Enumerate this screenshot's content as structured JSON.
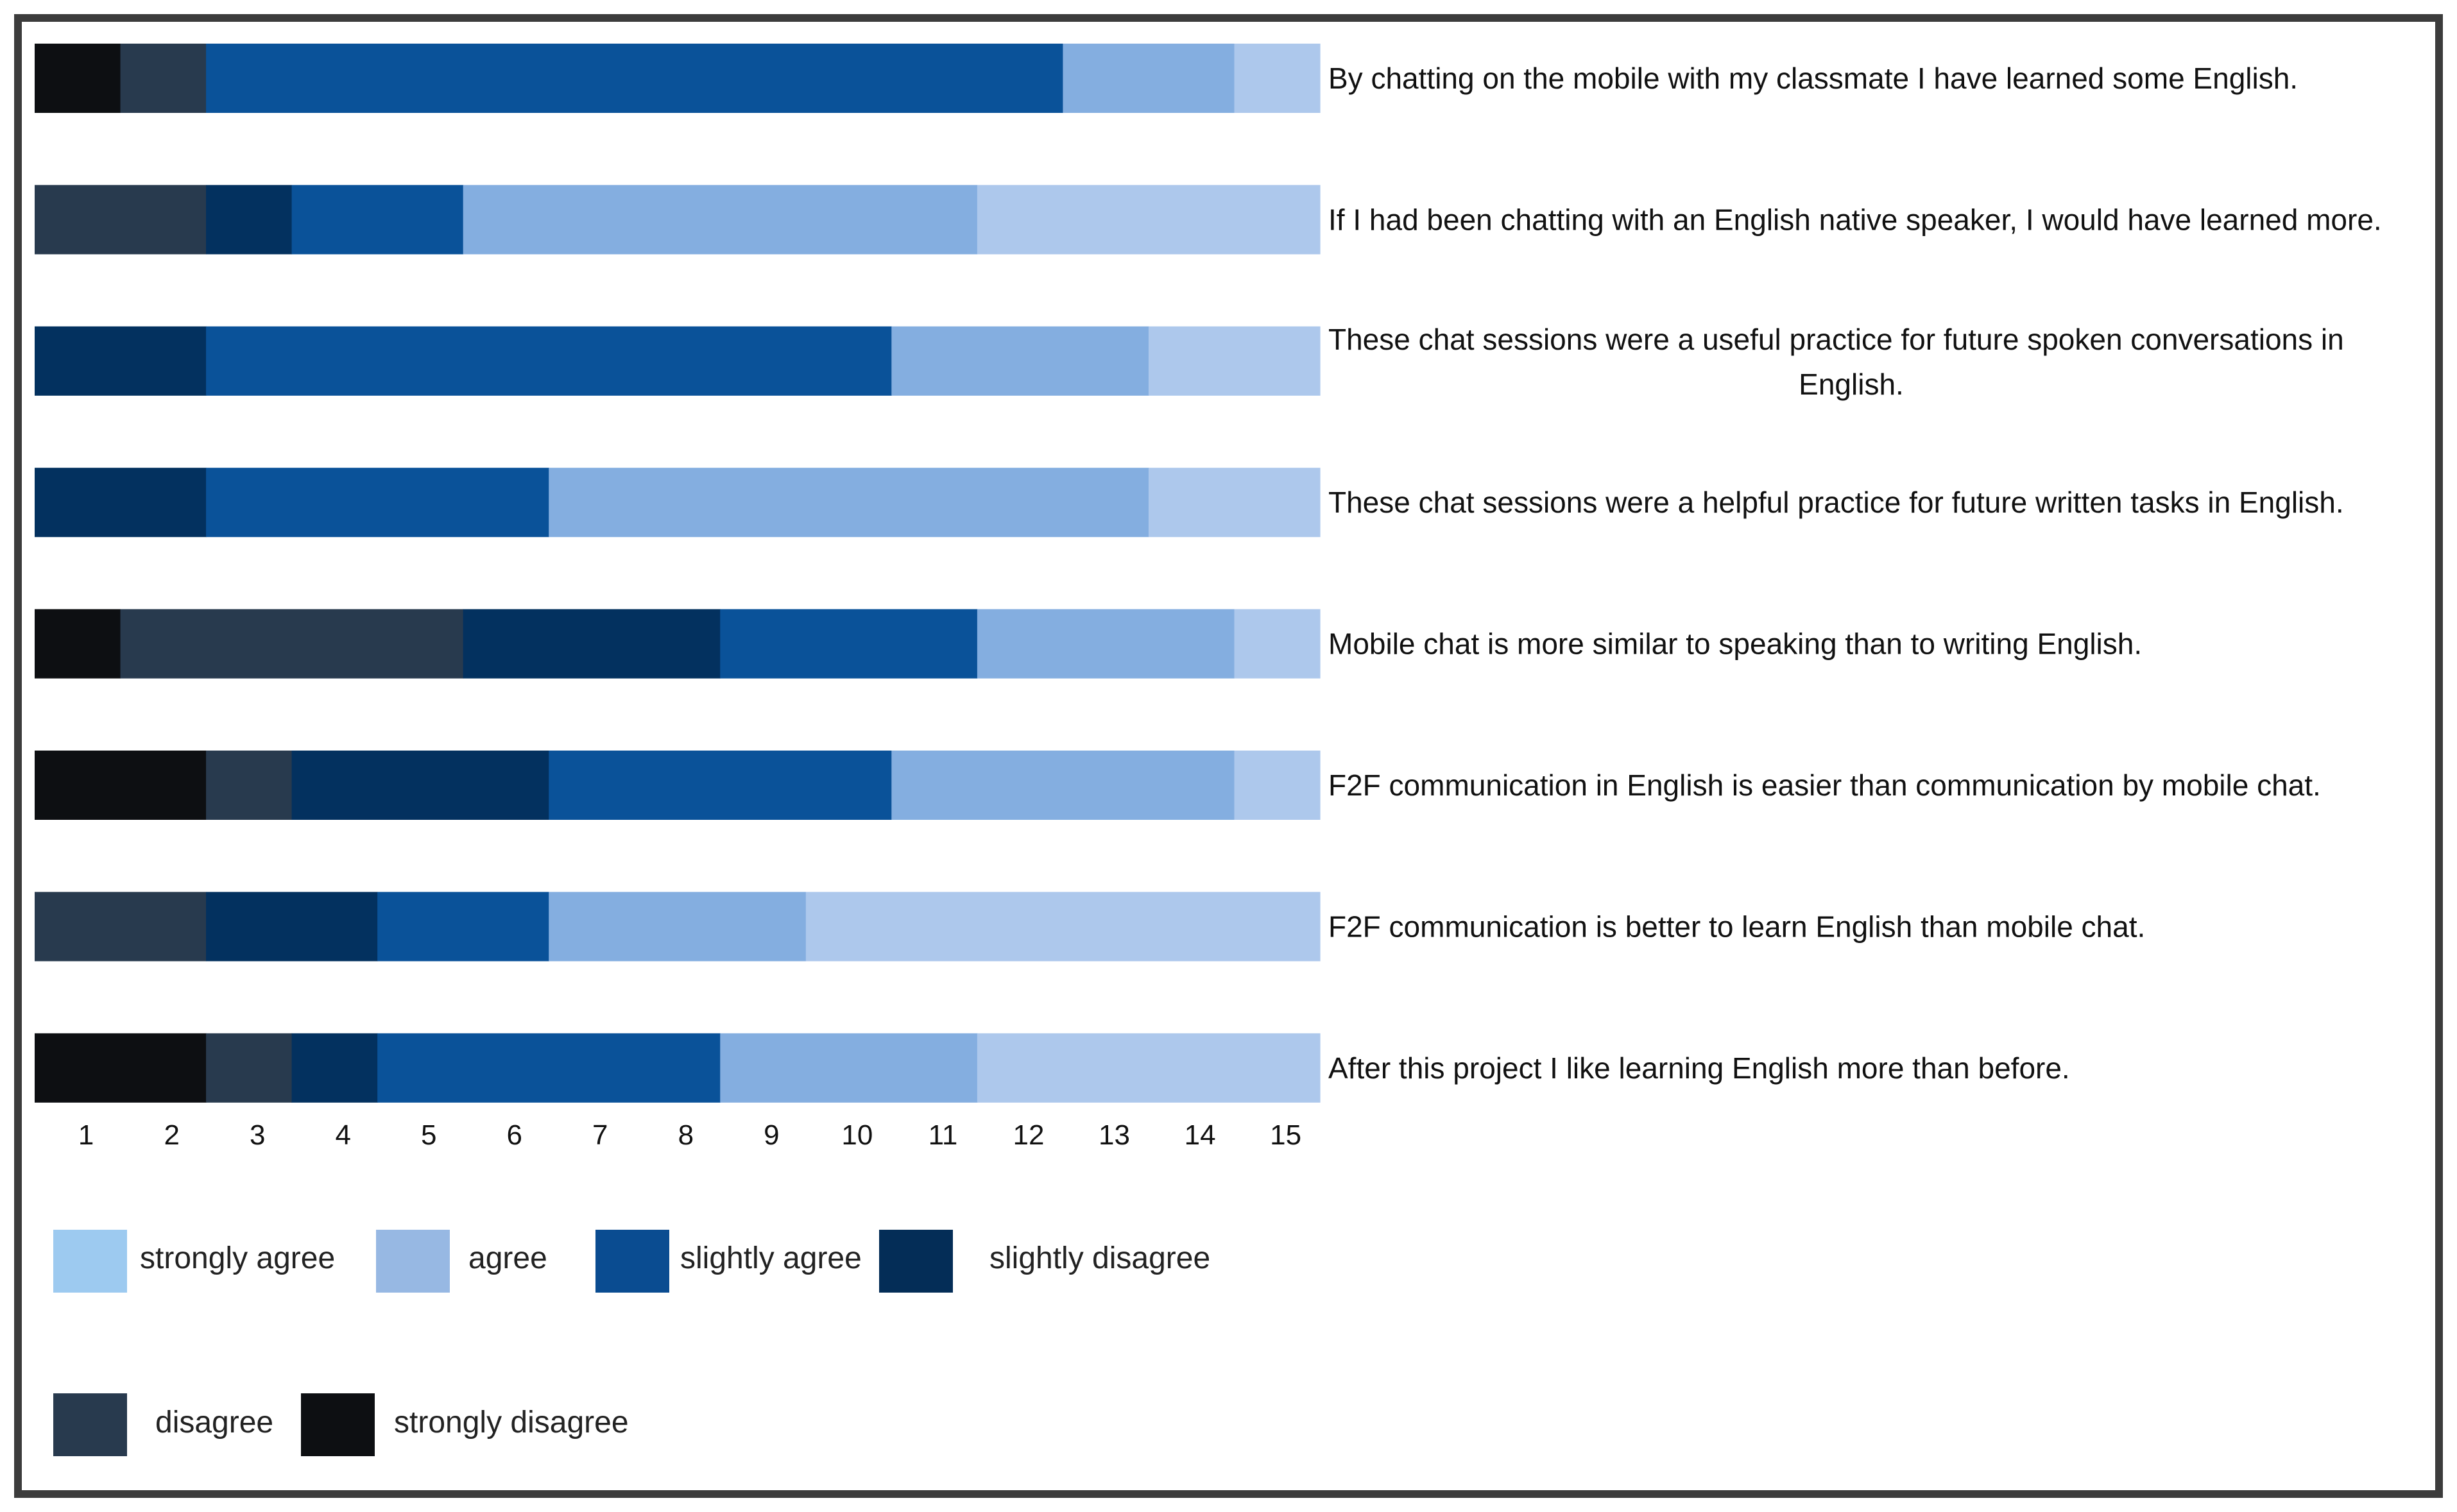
{
  "chart_data": {
    "type": "bar",
    "orientation": "horizontal-stacked",
    "x_ticks": [
      "1",
      "2",
      "3",
      "4",
      "5",
      "6",
      "7",
      "8",
      "9",
      "10",
      "11",
      "12",
      "13",
      "14",
      "15"
    ],
    "xlim": [
      0,
      15
    ],
    "categories": [
      "By chatting on the mobile with my classmate I have learned some English.",
      "If I had been chatting with an English native speaker, I would have learned more.",
      "These chat sessions were a useful practice for future spoken conversations in English.",
      "These chat sessions were a helpful practice for future written tasks in English.",
      "Mobile chat is more similar to speaking than to writing English.",
      "F2F communication in English is easier than communication by mobile chat.",
      "F2F communication is better to learn English than mobile chat.",
      "After this project I like learning English more than before."
    ],
    "series": [
      {
        "name": "strongly disagree",
        "color": "#0d0f12",
        "values": [
          1,
          0,
          0,
          0,
          1,
          2,
          0,
          2
        ]
      },
      {
        "name": "disagree",
        "color": "#283a4e",
        "values": [
          1,
          2,
          0,
          0,
          4,
          1,
          2,
          1
        ]
      },
      {
        "name": "slightly disagree",
        "color": "#03315f",
        "values": [
          0,
          1,
          2,
          2,
          3,
          3,
          2,
          1
        ]
      },
      {
        "name": "slightly agree",
        "color": "#0a5299",
        "values": [
          10,
          2,
          8,
          4,
          3,
          4,
          2,
          4
        ]
      },
      {
        "name": "agree",
        "color": "#84aee0",
        "values": [
          2,
          6,
          3,
          7,
          3,
          4,
          3,
          3
        ]
      },
      {
        "name": "strongly agree",
        "color": "#adc8ec",
        "values": [
          1,
          4,
          2,
          2,
          1,
          1,
          6,
          4
        ]
      }
    ],
    "legend": {
      "position": "bottom",
      "items": [
        {
          "label": "strongly agree",
          "color": "#9dcaf0"
        },
        {
          "label": "agree",
          "color": "#97b8e3"
        },
        {
          "label": "slightly agree",
          "color": "#0a4c91"
        },
        {
          "label": "slightly disagree",
          "color": "#042d57"
        },
        {
          "label": "disagree",
          "color": "#283a4e"
        },
        {
          "label": "strongly disagree",
          "color": "#0d0f12"
        }
      ]
    },
    "frame_color": "#3c3c3c"
  }
}
